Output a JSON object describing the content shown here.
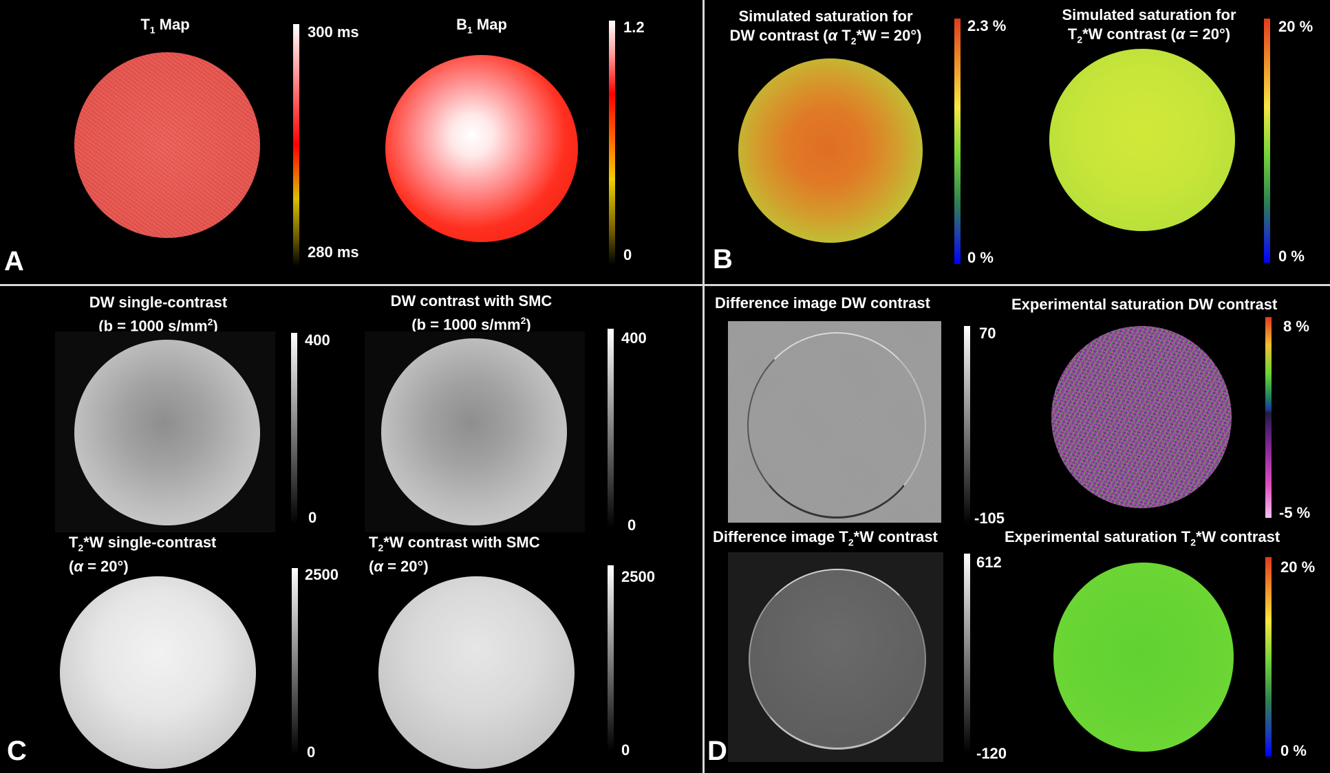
{
  "panels": {
    "A": {
      "letter": "A",
      "t1": {
        "title_pre": "T",
        "title_sub": "1",
        "title_post": " Map",
        "scale_max": "300 ms",
        "scale_min": "280 ms"
      },
      "b1": {
        "title_pre": "B",
        "title_sub": "1",
        "title_post": " Map",
        "scale_max": "1.2",
        "scale_min": "0"
      }
    },
    "B": {
      "letter": "B",
      "dw": {
        "line1": "Simulated saturation for",
        "line2_pre": "DW contrast (",
        "line2_alpha": "α",
        "line2_mid": " T",
        "line2_sub": "2",
        "line2_post": "*W = 20°)",
        "scale_max": "2.3 %",
        "scale_min": "0 %"
      },
      "t2": {
        "line1": "Simulated saturation for",
        "line2_pre": "T",
        "line2_sub": "2",
        "line2_mid": "*W contrast (",
        "line2_alpha": "α",
        "line2_post": " = 20°)",
        "scale_max": "20 %",
        "scale_min": "0 %"
      }
    },
    "C": {
      "letter": "C",
      "dw_single": {
        "line1": "DW single-contrast",
        "line2_pre": "(b = 1000 s/mm",
        "line2_sup": "2",
        "line2_post": ")",
        "scale_max": "400",
        "scale_min": "0"
      },
      "dw_smc": {
        "line1": "DW contrast with SMC",
        "line2_pre": "(b = 1000 s/mm",
        "line2_sup": "2",
        "line2_post": ")",
        "scale_max": "400",
        "scale_min": "0"
      },
      "t2_single": {
        "line1_pre": "T",
        "line1_sub": "2",
        "line1_post": "*W single-contrast",
        "line2_pre": "(",
        "line2_alpha": "α",
        "line2_post": " = 20°)",
        "scale_max": "2500",
        "scale_min": "0"
      },
      "t2_smc": {
        "line1_pre": "T",
        "line1_sub": "2",
        "line1_post": "*W contrast with SMC",
        "line2_pre": "(",
        "line2_alpha": "α",
        "line2_post": " = 20°)",
        "scale_max": "2500",
        "scale_min": "0"
      }
    },
    "D": {
      "letter": "D",
      "diff_dw": {
        "title": "Difference image DW contrast",
        "scale_max": "70",
        "scale_min": "-105"
      },
      "exp_dw": {
        "title": "Experimental saturation DW contrast",
        "scale_max": "8 %",
        "scale_min": "-5 %"
      },
      "diff_t2": {
        "title_pre": "Difference image T",
        "title_sub": "2",
        "title_post": "*W contrast",
        "scale_max": "612",
        "scale_min": "-120"
      },
      "exp_t2": {
        "title_pre": "Experimental saturation T",
        "title_sub": "2",
        "title_post": "*W contrast",
        "scale_max": "20 %",
        "scale_min": "0 %"
      }
    }
  },
  "colors": {
    "background": "#000000",
    "divider": "#d8d8d8",
    "t1_disc": "#e8574f",
    "b1_center": "#ffffff",
    "b1_edge": "#f01f10",
    "sim_dw_center": "#e07a26",
    "sim_dw_edge": "#a9d83c",
    "sim_t2": "#bce33a",
    "exp_t2": "#6cd634"
  }
}
